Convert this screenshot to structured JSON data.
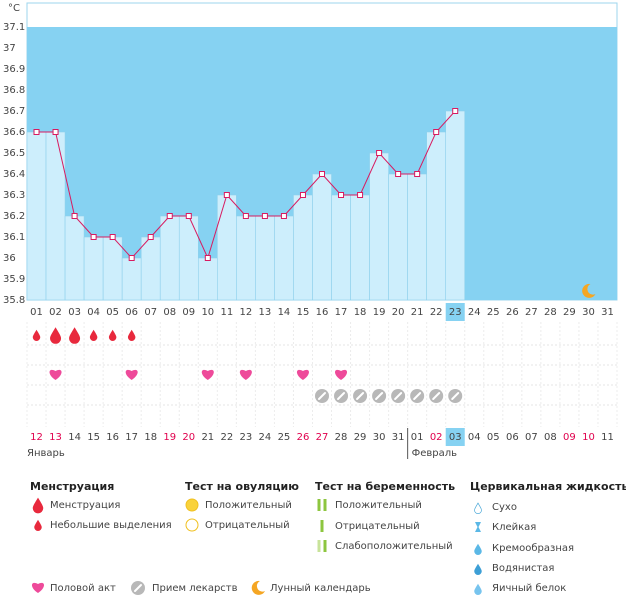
{
  "chart_data": {
    "type": "line",
    "y_label": "°C",
    "categories": [
      "01",
      "02",
      "03",
      "04",
      "05",
      "06",
      "07",
      "08",
      "09",
      "10",
      "11",
      "12",
      "13",
      "14",
      "15",
      "16",
      "17",
      "18",
      "19",
      "20",
      "21",
      "22",
      "23",
      "24",
      "25",
      "26",
      "27",
      "28",
      "29",
      "30",
      "31"
    ],
    "values": [
      36.6,
      36.6,
      36.2,
      36.1,
      36.1,
      36.0,
      36.1,
      36.2,
      36.2,
      36.0,
      36.3,
      36.2,
      36.2,
      36.2,
      36.3,
      36.4,
      36.3,
      36.3,
      36.5,
      36.4,
      36.4,
      36.6,
      36.7,
      null,
      null,
      null,
      null,
      null,
      null,
      null,
      null
    ],
    "ylim": [
      35.8,
      37.1
    ],
    "yticks": [
      35.8,
      35.9,
      36,
      36.1,
      36.2,
      36.3,
      36.4,
      36.5,
      36.6,
      36.7,
      36.8,
      36.9,
      37,
      37.1
    ],
    "color": "#d81b60",
    "bar_color": "#cdeefc",
    "background": "#86d2f2",
    "highlight": "23"
  },
  "marks": {
    "bleeding": [
      "Небольшие выделения",
      "Менструация",
      "Менструация",
      "Небольшие выделения",
      "Небольшие выделения",
      "Небольшие выделения",
      null,
      null,
      null,
      null,
      null,
      null,
      null,
      null,
      null,
      null,
      null,
      null,
      null,
      null,
      null,
      null,
      null,
      null,
      null,
      null,
      null,
      null,
      null,
      null,
      null
    ],
    "sex": [
      null,
      "Половой акт",
      null,
      null,
      null,
      "Половой акт",
      null,
      null,
      null,
      "Половой акт",
      null,
      "Половой акт",
      null,
      null,
      "Половой акт",
      null,
      "Половой акт",
      null,
      null,
      null,
      null,
      null,
      null,
      null,
      null,
      null,
      null,
      null,
      null,
      null,
      null
    ],
    "meds": [
      null,
      null,
      null,
      null,
      null,
      null,
      null,
      null,
      null,
      null,
      null,
      null,
      null,
      null,
      null,
      "Прием лекарств",
      "Прием лекарств",
      "Прием лекарств",
      "Прием лекарств",
      "Прием лекарств",
      "Прием лекарств",
      "Прием лекарств",
      "Прием лекарств",
      null,
      null,
      null,
      null,
      null,
      null,
      null,
      null
    ],
    "moon": [
      null,
      null,
      null,
      null,
      null,
      null,
      null,
      null,
      null,
      null,
      null,
      null,
      null,
      null,
      null,
      null,
      null,
      null,
      null,
      null,
      null,
      null,
      null,
      null,
      null,
      null,
      null,
      null,
      null,
      "Лунный календарь",
      null
    ]
  },
  "calendar": {
    "dates": [
      "12",
      "13",
      "14",
      "15",
      "16",
      "17",
      "18",
      "19",
      "20",
      "21",
      "22",
      "23",
      "24",
      "25",
      "26",
      "27",
      "28",
      "29",
      "30",
      "31",
      "01",
      "02",
      "03",
      "04",
      "05",
      "06",
      "07",
      "08",
      "09",
      "10",
      "11"
    ],
    "colors": [
      "#e0004d",
      "#e0004d",
      "#444",
      "#444",
      "#444",
      "#444",
      "#444",
      "#e0004d",
      "#e0004d",
      "#444",
      "#444",
      "#444",
      "#444",
      "#444",
      "#e0004d",
      "#e0004d",
      "#444",
      "#444",
      "#444",
      "#444",
      "#444",
      "#e0004d",
      "#444",
      "#444",
      "#444",
      "#444",
      "#444",
      "#444",
      "#e0004d",
      "#e0004d",
      "#444"
    ],
    "months": [
      "Январь",
      null,
      null,
      null,
      null,
      null,
      null,
      null,
      null,
      null,
      null,
      null,
      null,
      null,
      null,
      null,
      null,
      null,
      null,
      null,
      "Февраль",
      null,
      null,
      null,
      null,
      null,
      null,
      null,
      null,
      null,
      null
    ],
    "highlight": "03"
  },
  "legend": {
    "groups": [
      {
        "title": "Менструация",
        "items": [
          "Менструация",
          "Небольшие выделения"
        ]
      },
      {
        "title": "Тест на овуляцию",
        "items": [
          "Положительный",
          "Отрицательный"
        ]
      },
      {
        "title": "Тест на беременность",
        "items": [
          "Положительный",
          "Отрицательный",
          "Слабоположительный"
        ]
      },
      {
        "title": "Цервикальная жидкость",
        "items": [
          "Сухо",
          "Клейкая",
          "Кремообразная",
          "Водянистая",
          "Яичный белок"
        ]
      }
    ],
    "extra": [
      "Половой акт",
      "Прием лекарств",
      "Лунный календарь"
    ]
  }
}
